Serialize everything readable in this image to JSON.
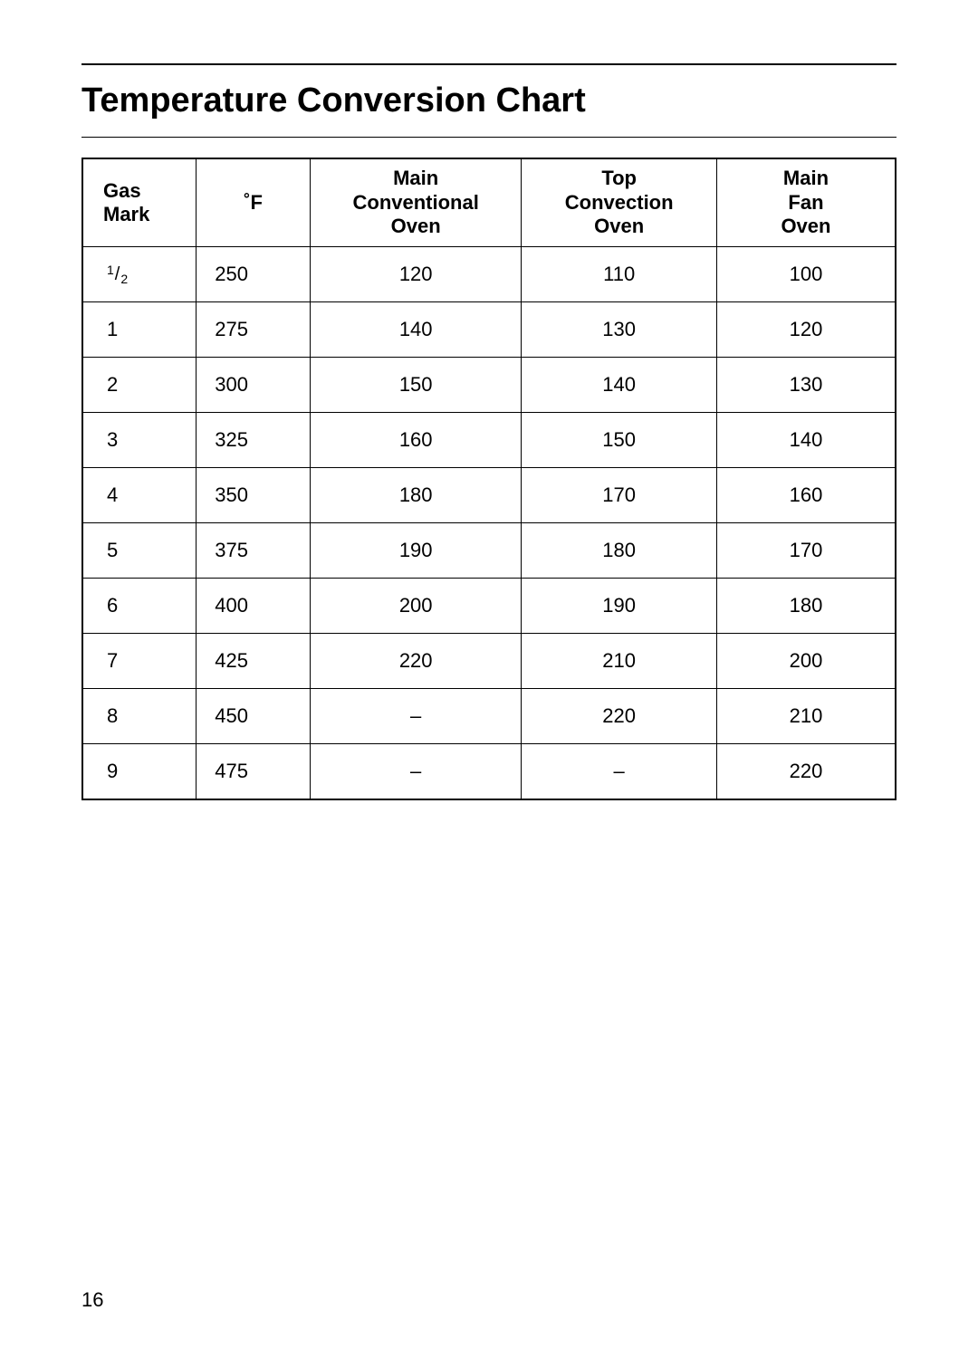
{
  "title": "Temperature Conversion Chart",
  "page_number": "16",
  "table": {
    "type": "table",
    "border_color": "#000000",
    "background_color": "#ffffff",
    "header_font_weight": "700",
    "body_font_weight": "400",
    "font_size_pt": 16,
    "columns": [
      {
        "key": "gas",
        "label": "Gas\nMark",
        "align": "left",
        "width_pct": 14
      },
      {
        "key": "f",
        "label": "˚F",
        "align": "center",
        "width_pct": 14
      },
      {
        "key": "conv",
        "label": "Main\nConventional\nOven",
        "align": "center",
        "width_pct": 26
      },
      {
        "key": "top",
        "label": "Top\nConvection\nOven",
        "align": "center",
        "width_pct": 24
      },
      {
        "key": "fan",
        "label": "Main\nFan\nOven",
        "align": "center",
        "width_pct": 22
      }
    ],
    "rows": [
      {
        "gas": "1/2",
        "gas_is_fraction": true,
        "f": "250",
        "conv": "120",
        "top": "110",
        "fan": "100"
      },
      {
        "gas": "1",
        "f": "275",
        "conv": "140",
        "top": "130",
        "fan": "120"
      },
      {
        "gas": "2",
        "f": "300",
        "conv": "150",
        "top": "140",
        "fan": "130"
      },
      {
        "gas": "3",
        "f": "325",
        "conv": "160",
        "top": "150",
        "fan": "140"
      },
      {
        "gas": "4",
        "f": "350",
        "conv": "180",
        "top": "170",
        "fan": "160"
      },
      {
        "gas": "5",
        "f": "375",
        "conv": "190",
        "top": "180",
        "fan": "170"
      },
      {
        "gas": "6",
        "f": "400",
        "conv": "200",
        "top": "190",
        "fan": "180"
      },
      {
        "gas": "7",
        "f": "425",
        "conv": "220",
        "top": "210",
        "fan": "200"
      },
      {
        "gas": "8",
        "f": "450",
        "conv": "–",
        "top": "220",
        "fan": "210"
      },
      {
        "gas": "9",
        "f": "475",
        "conv": "–",
        "top": "–",
        "fan": "220"
      }
    ]
  }
}
